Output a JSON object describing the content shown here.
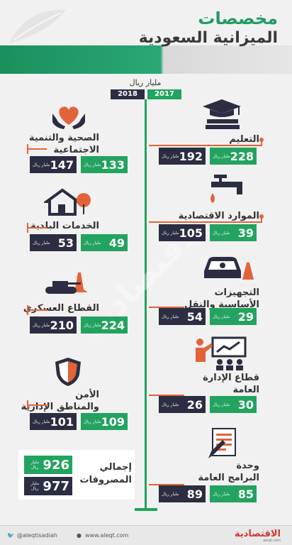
{
  "header": {
    "line1": "مخصصات",
    "line2": "الميزانية السعودية"
  },
  "legend": {
    "unit": "مليار ريال",
    "year_2018": "2018",
    "year_2017": "2017"
  },
  "unit_text": "مليار ريال",
  "items": {
    "health": {
      "label1": "الصحية والتنمية",
      "label2": "الاجتماعية",
      "v2017": "133",
      "v2018": "147"
    },
    "municipal": {
      "label1": "الخدمات البلدية",
      "v2017": "49",
      "v2018": "53"
    },
    "military": {
      "label1": "القطاع العسكري",
      "v2017": "224",
      "v2018": "210"
    },
    "security": {
      "label1": "الأمن",
      "label2": "والمناطق الإدارية",
      "v2017": "109",
      "v2018": "101"
    },
    "education": {
      "label1": "التعليم",
      "v2017": "228",
      "v2018": "192"
    },
    "economic": {
      "label1": "الموارد الاقتصادية",
      "v2017": "39",
      "v2018": "105"
    },
    "transport": {
      "label1": "التجهيزات",
      "label2": "الأساسية والنقل",
      "v2017": "29",
      "v2018": "54"
    },
    "admin": {
      "label1": "قطاع الإدارة",
      "label2": "العامة",
      "v2017": "30",
      "v2018": "26"
    },
    "programs": {
      "label1": "وحدة",
      "label2": "البرامج العامة",
      "v2017": "85",
      "v2018": "89"
    }
  },
  "total": {
    "label1": "إجمالي",
    "label2": "المصروفات",
    "v2017": "926",
    "v2018": "977"
  },
  "footer": {
    "twitter": "@aleqtisadiah",
    "web": "www.aleqt.com",
    "brand": "الاقتصادية",
    "brand_sub": "aleqt.com",
    "watermark": "الاقتصادية"
  },
  "colors": {
    "green": "#22a35f",
    "dark": "#2b2d42",
    "accent": "#e2633a"
  }
}
